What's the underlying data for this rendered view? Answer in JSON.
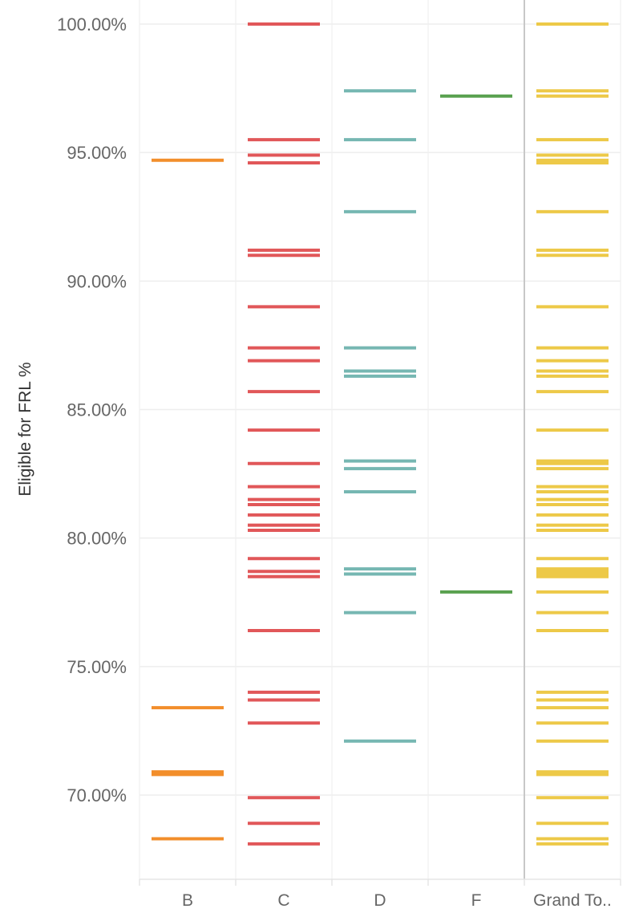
{
  "chart_data": {
    "type": "strip",
    "ylabel": "Eligible for FRL %",
    "ylim": [
      67.0,
      100.7
    ],
    "y_ticks": [
      "100.00%",
      "95.00%",
      "90.00%",
      "85.00%",
      "80.00%",
      "75.00%",
      "70.00%"
    ],
    "y_tick_values": [
      100,
      95,
      90,
      85,
      80,
      75,
      70
    ],
    "gridlines": true,
    "categories": [
      "B",
      "C",
      "D",
      "F",
      "Grand To.."
    ],
    "series": [
      {
        "category": "B",
        "color": "#f28e2b",
        "values": [
          94.7,
          73.4,
          70.9,
          70.8,
          68.3
        ]
      },
      {
        "category": "C",
        "color": "#e15759",
        "values": [
          100.0,
          95.5,
          94.9,
          94.6,
          91.2,
          91.0,
          89.0,
          87.4,
          86.9,
          85.7,
          84.2,
          82.9,
          82.0,
          81.5,
          81.3,
          80.9,
          80.5,
          80.3,
          79.2,
          78.7,
          78.5,
          76.4,
          74.0,
          73.7,
          72.8,
          69.9,
          68.9,
          68.1
        ]
      },
      {
        "category": "D",
        "color": "#76b7b2",
        "values": [
          97.4,
          95.5,
          92.7,
          87.4,
          86.5,
          86.3,
          83.0,
          82.7,
          81.8,
          78.8,
          78.6,
          77.1,
          72.1
        ]
      },
      {
        "category": "F",
        "color": "#59a14f",
        "values": [
          97.2,
          77.9
        ]
      },
      {
        "category": "Grand To..",
        "color": "#edc948",
        "values": [
          100.0,
          97.4,
          97.2,
          95.5,
          94.9,
          94.7,
          94.6,
          92.7,
          91.2,
          91.0,
          89.0,
          87.4,
          86.9,
          86.5,
          86.3,
          85.7,
          84.2,
          83.0,
          82.9,
          82.7,
          82.0,
          81.8,
          81.5,
          81.3,
          80.9,
          80.5,
          80.3,
          79.2,
          78.8,
          78.7,
          78.6,
          78.5,
          77.9,
          77.1,
          76.4,
          74.0,
          73.7,
          73.4,
          72.8,
          72.1,
          70.9,
          70.8,
          69.9,
          68.9,
          68.3,
          68.1
        ]
      }
    ]
  }
}
